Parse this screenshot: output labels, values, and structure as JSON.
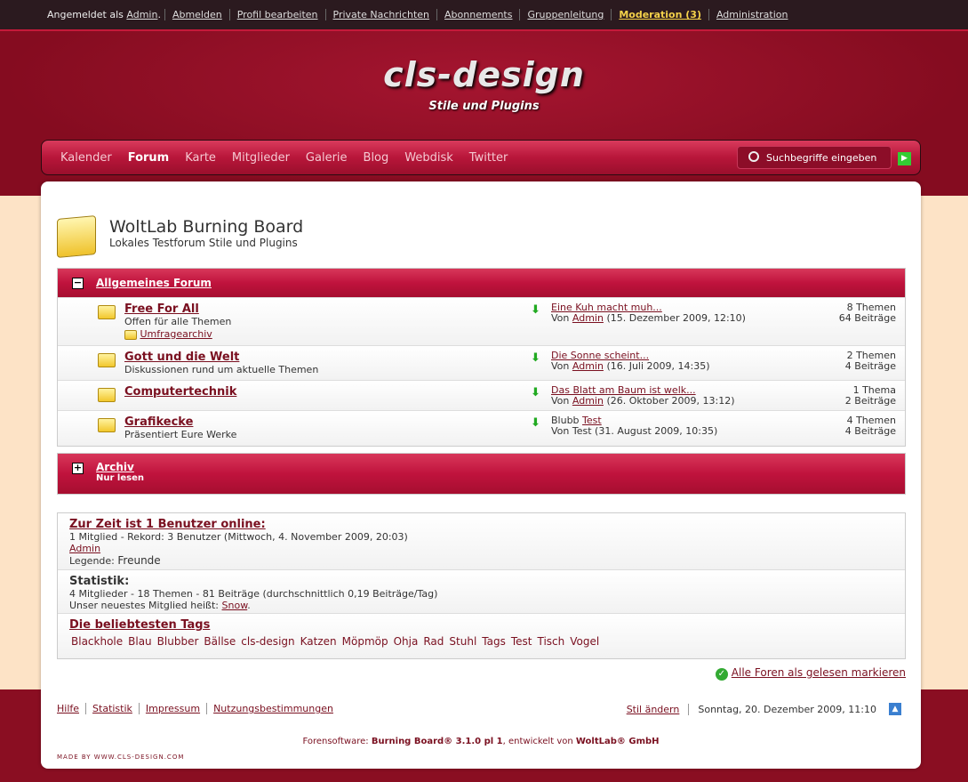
{
  "topbar": {
    "logged_in": "Angemeldet als",
    "user": "Admin",
    "items": [
      "Abmelden",
      "Profil bearbeiten",
      "Private Nachrichten",
      "Abonnements",
      "Gruppenleitung",
      "Moderation (3)",
      "Administration"
    ]
  },
  "header": {
    "logo": "cls-design",
    "tagline": "Stile und Plugins"
  },
  "nav": {
    "items": [
      "Kalender",
      "Forum",
      "Karte",
      "Mitglieder",
      "Galerie",
      "Blog",
      "Webdisk",
      "Twitter"
    ],
    "active": "Forum",
    "search_placeholder": "Suchbegriffe eingeben"
  },
  "page": {
    "title": "WoltLab Burning Board",
    "subtitle": "Lokales Testforum Stile und Plugins"
  },
  "categories": [
    {
      "name": "Allgemeines Forum",
      "toggle": "−",
      "boards": [
        {
          "name": "Free For All",
          "desc": "Offen für alle Themen",
          "sub": "Umfragearchiv",
          "last_title": "Eine Kuh macht muh...",
          "by": "Von",
          "author": "Admin",
          "date": "(15. Dezember 2009, 12:10)",
          "topics": "8 Themen",
          "posts": "64 Beiträge"
        },
        {
          "name": "Gott und die Welt",
          "desc": "Diskussionen rund um aktuelle Themen",
          "last_title": "Die Sonne scheint...",
          "by": "Von",
          "author": "Admin",
          "date": "(16. Juli 2009, 14:35)",
          "topics": "2 Themen",
          "posts": "4 Beiträge"
        },
        {
          "name": "Computertechnik",
          "desc": "",
          "last_title": "Das Blatt am Baum ist welk...",
          "by": "Von",
          "author": "Admin",
          "date": "(26. Oktober 2009, 13:12)",
          "topics": "1 Thema",
          "posts": "2 Beiträge"
        },
        {
          "name": "Grafikecke",
          "desc": "Präsentiert Eure Werke",
          "last_prefix": "Blubb",
          "last_title": "Test",
          "by": "Von Test",
          "author": "",
          "date": "(31. August 2009, 10:35)",
          "topics": "4 Themen",
          "posts": "4 Beiträge"
        }
      ]
    },
    {
      "name": "Archiv",
      "toggle": "+",
      "desc": "Nur lesen"
    }
  ],
  "info": {
    "online_title": "Zur Zeit ist 1 Benutzer online:",
    "online_line": "1 Mitglied - Rekord: 3 Benutzer (Mittwoch, 4. November 2009, 20:03)",
    "online_user": "Admin",
    "legend_label": "Legende:",
    "legend_value": "Freunde",
    "stats_title": "Statistik:",
    "stats_line": "4 Mitglieder - 18 Themen - 81 Beiträge (durchschnittlich 0,19 Beiträge/Tag)",
    "newest_label": "Unser neuestes Mitglied heißt:",
    "newest_user": "Snow",
    "tags_title": "Die beliebtesten Tags",
    "tags": [
      "Blackhole",
      "Blau",
      "Blubber",
      "Bällse",
      "cls-design",
      "Katzen",
      "Möpmöp",
      "Ohja",
      "Rad",
      "Stuhl",
      "Tags",
      "Test",
      "Tisch",
      "Vogel"
    ]
  },
  "mark_all": "Alle Foren als gelesen markieren",
  "footer": {
    "links": [
      "Hilfe",
      "Statistik",
      "Impressum",
      "Nutzungsbestimmungen"
    ],
    "change_style": "Stil ändern",
    "date": "Sonntag, 20. Dezember 2009, 11:10",
    "copy_prefix": "Forensoftware:",
    "software": "Burning Board® 3.1.0 pl 1",
    "copy_mid": ", entwickelt von",
    "company": "WoltLab® GmbH",
    "made_by": "made by www.cls-design.com"
  }
}
